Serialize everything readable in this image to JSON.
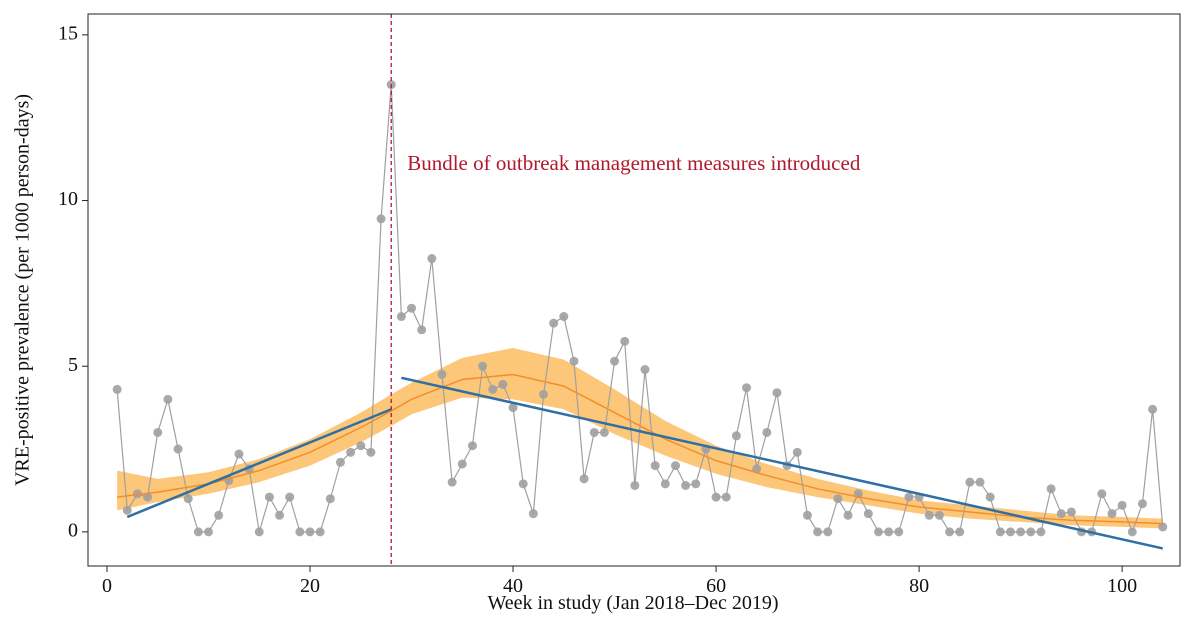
{
  "chart_data": {
    "type": "line",
    "xlabel": "Week in study (Jan 2018–Dec 2019)",
    "ylabel": "VRE-positive prevalence (per 1000 person-days)",
    "xlim": [
      -1.87,
      105.7
    ],
    "ylim": [
      -1.03,
      15.63
    ],
    "xticks": [
      0,
      20,
      40,
      60,
      80,
      100
    ],
    "yticks": [
      0,
      5,
      10,
      15
    ],
    "grid": false,
    "annotation": {
      "x": 28,
      "label": "Bundle of outbreak management measures introduced",
      "color": "#b2182b"
    },
    "series": [
      {
        "color": "#a0a0a0",
        "markers": true,
        "x": [
          1,
          2,
          3,
          4,
          5,
          6,
          7,
          8,
          9,
          10,
          11,
          12,
          13,
          14,
          15,
          16,
          17,
          18,
          19,
          20,
          21,
          22,
          23,
          24,
          25,
          26,
          27,
          28,
          29,
          30,
          31,
          32,
          33,
          34,
          35,
          36,
          37,
          38,
          39,
          40,
          41,
          42,
          43,
          44,
          45,
          46,
          47,
          48,
          49,
          50,
          51,
          52,
          53,
          54,
          55,
          56,
          57,
          58,
          59,
          60,
          61,
          62,
          63,
          64,
          65,
          66,
          67,
          68,
          69,
          70,
          71,
          72,
          73,
          74,
          75,
          76,
          77,
          78,
          79,
          80,
          81,
          82,
          83,
          84,
          85,
          86,
          87,
          88,
          89,
          90,
          91,
          92,
          93,
          94,
          95,
          96,
          97,
          98,
          99,
          100,
          101,
          102,
          103,
          104
        ],
        "values": [
          4.3,
          0.65,
          1.15,
          1.05,
          3.0,
          4.0,
          2.5,
          1.0,
          0,
          0,
          0.5,
          1.55,
          2.35,
          1.9,
          0,
          1.05,
          0.5,
          1.05,
          0,
          0,
          0,
          1.0,
          2.1,
          2.4,
          2.6,
          2.4,
          9.45,
          13.5,
          6.5,
          6.75,
          6.1,
          8.25,
          4.75,
          1.5,
          2.05,
          2.6,
          5.0,
          4.3,
          4.45,
          3.75,
          1.45,
          0.55,
          4.15,
          6.3,
          6.5,
          5.15,
          1.6,
          3.0,
          3.0,
          5.15,
          5.75,
          1.4,
          4.9,
          2.0,
          1.45,
          2.0,
          1.4,
          1.45,
          2.5,
          1.05,
          1.05,
          2.9,
          4.35,
          1.9,
          3.0,
          4.2,
          2.0,
          2.4,
          0.5,
          0,
          0,
          1.0,
          0.5,
          1.15,
          0.55,
          0,
          0,
          0,
          1.05,
          1.05,
          0.5,
          0.5,
          0,
          0,
          1.5,
          1.5,
          1.05,
          0,
          0,
          0,
          0,
          0,
          1.3,
          0.55,
          0.6,
          0,
          0,
          1.15,
          0.55,
          0.8,
          0,
          0.85,
          3.7,
          0.15
        ]
      },
      {
        "color": "#f28e2b",
        "band_color": "#fdc77a",
        "x": [
          1,
          5,
          10,
          15,
          20,
          25,
          28,
          30,
          35,
          40,
          45,
          50,
          55,
          60,
          65,
          70,
          75,
          80,
          85,
          90,
          95,
          100,
          104
        ],
        "values": [
          1.05,
          1.2,
          1.45,
          1.85,
          2.4,
          3.15,
          3.65,
          4.0,
          4.6,
          4.75,
          4.4,
          3.6,
          2.8,
          2.15,
          1.7,
          1.3,
          1.0,
          0.75,
          0.6,
          0.45,
          0.35,
          0.3,
          0.25
        ],
        "lower": [
          0.65,
          0.9,
          1.15,
          1.5,
          2.0,
          2.7,
          3.2,
          3.55,
          4.05,
          4.0,
          3.7,
          2.95,
          2.3,
          1.75,
          1.35,
          1.05,
          0.8,
          0.55,
          0.4,
          0.3,
          0.2,
          0.15,
          0.1
        ],
        "upper": [
          1.85,
          1.6,
          1.8,
          2.2,
          2.8,
          3.6,
          4.15,
          4.5,
          5.25,
          5.55,
          5.2,
          4.3,
          3.35,
          2.6,
          2.05,
          1.6,
          1.25,
          0.95,
          0.8,
          0.65,
          0.5,
          0.45,
          0.4
        ]
      },
      {
        "color": "#2f6fa3",
        "x": [
          2,
          28,
          null,
          29,
          104
        ],
        "values": [
          0.45,
          3.7,
          null,
          4.65,
          -0.5
        ]
      }
    ]
  }
}
